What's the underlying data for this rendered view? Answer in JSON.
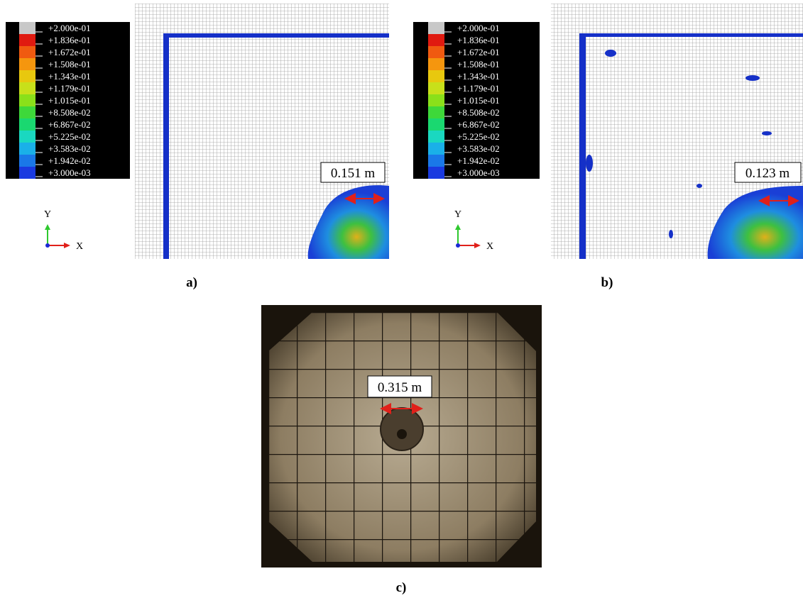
{
  "panels": [
    {
      "label": "a)",
      "legend": [
        "+2.000e-01",
        "+1.836e-01",
        "+1.672e-01",
        "+1.508e-01",
        "+1.343e-01",
        "+1.179e-01",
        "+1.015e-01",
        "+8.508e-02",
        "+6.867e-02",
        "+5.225e-02",
        "+3.583e-02",
        "+1.942e-02",
        "+3.000e-03"
      ],
      "axes": {
        "y": "Y",
        "x": "X"
      },
      "annotation": "0.151 m"
    },
    {
      "label": "b)",
      "legend": [
        "+2.000e-01",
        "+1.836e-01",
        "+1.672e-01",
        "+1.508e-01",
        "+1.343e-01",
        "+1.179e-01",
        "+1.015e-01",
        "+8.508e-02",
        "+6.867e-02",
        "+5.225e-02",
        "+3.583e-02",
        "+1.942e-02",
        "+3.000e-03"
      ],
      "axes": {
        "y": "Y",
        "x": "X"
      },
      "annotation": "0.123 m"
    },
    {
      "label": "c)",
      "annotation": "0.315 m"
    }
  ]
}
